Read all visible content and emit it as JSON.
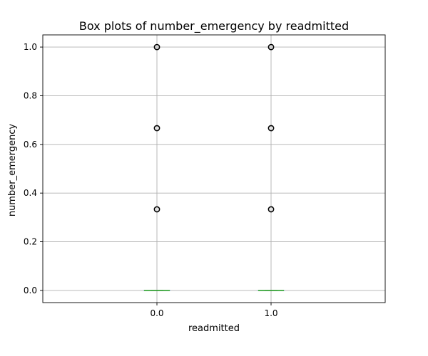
{
  "chart_data": {
    "type": "box",
    "title": "Box plots of number_emergency by readmitted",
    "xlabel": "readmitted",
    "ylabel": "number_emergency",
    "categories": [
      "0.0",
      "1.0"
    ],
    "ylim": [
      -0.05,
      1.05
    ],
    "yticks": [
      0.0,
      0.2,
      0.4,
      0.6,
      0.8,
      1.0
    ],
    "ytick_labels": [
      "0.0",
      "0.2",
      "0.4",
      "0.6",
      "0.8",
      "1.0"
    ],
    "grid": true,
    "boxes": [
      {
        "category": "0.0",
        "q1": 0.0,
        "median": 0.0,
        "q3": 0.0,
        "whisker_low": 0.0,
        "whisker_high": 0.0,
        "outliers": [
          0.3333,
          0.6667,
          1.0
        ]
      },
      {
        "category": "1.0",
        "q1": 0.0,
        "median": 0.0,
        "q3": 0.0,
        "whisker_low": 0.0,
        "whisker_high": 0.0,
        "outliers": [
          0.3333,
          0.6667,
          1.0
        ]
      }
    ],
    "colors": {
      "median": "#2ca02c",
      "box": "#1f77b4",
      "grid": "#b0b0b0",
      "flier": "#000000"
    }
  }
}
